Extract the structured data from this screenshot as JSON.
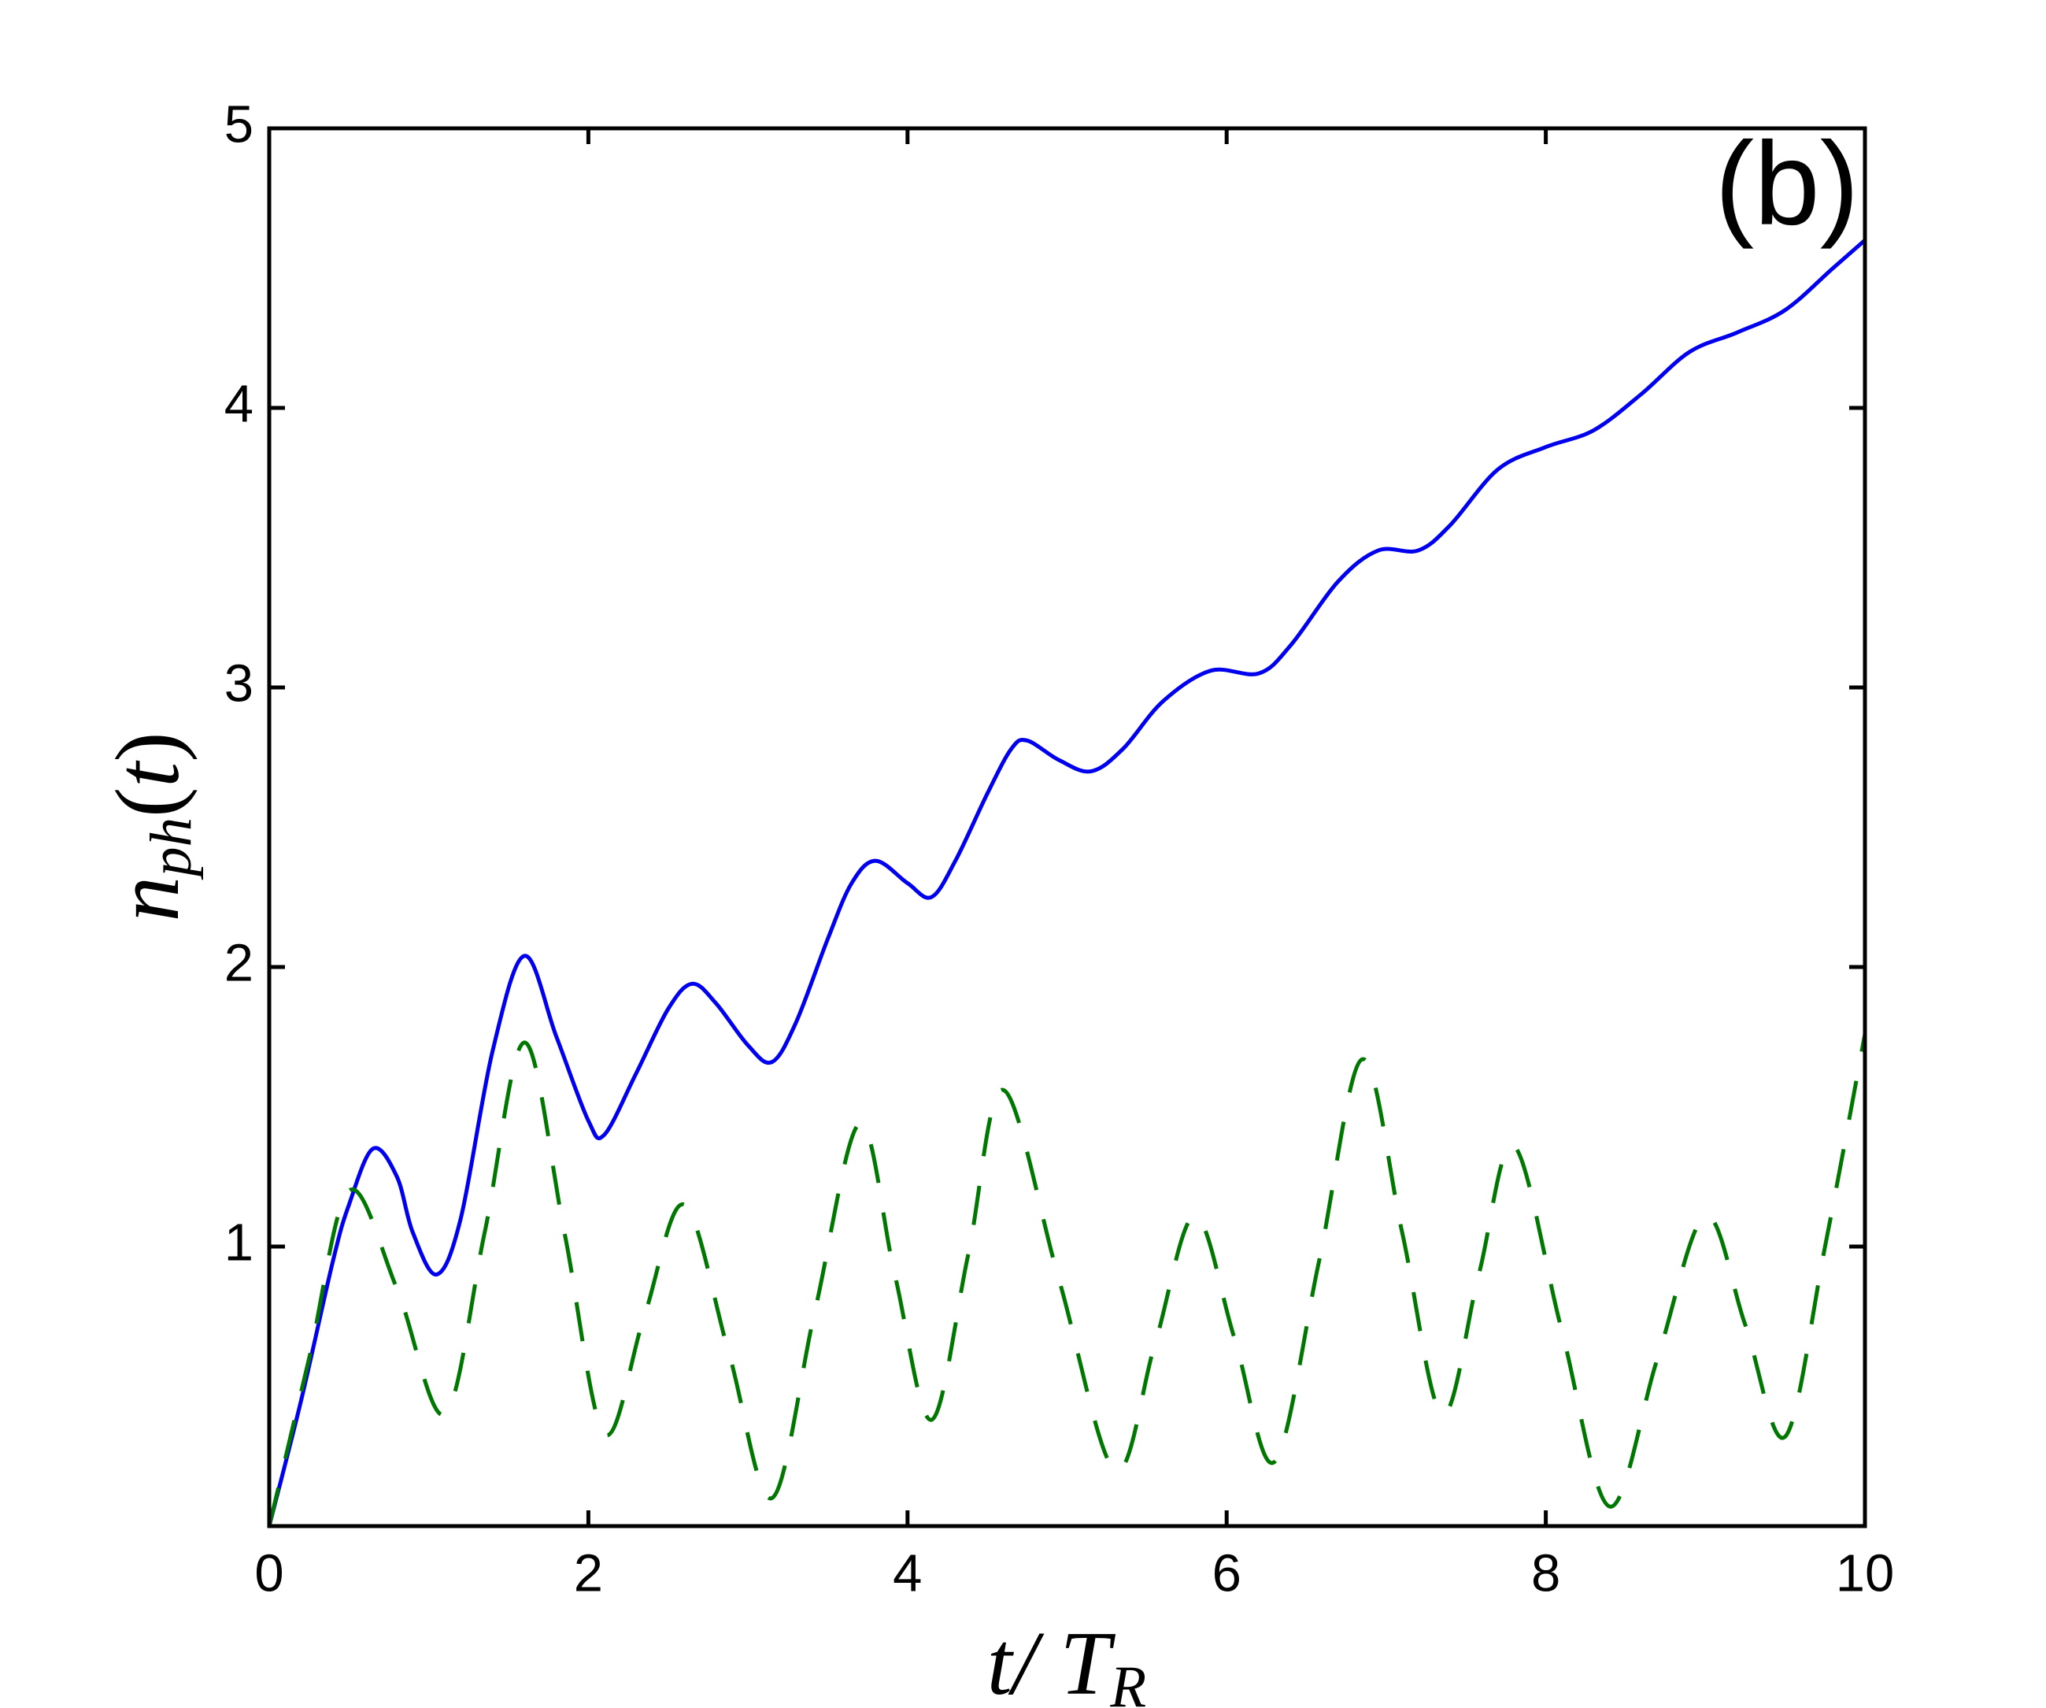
{
  "chart_data": {
    "type": "line",
    "annotation": "(b)",
    "xlabel": [
      "t",
      "/ ",
      "T",
      "R"
    ],
    "ylabel": [
      "n",
      "ph",
      "(",
      "t",
      ")"
    ],
    "xlim": [
      0,
      10
    ],
    "xticks": [
      0,
      2,
      4,
      6,
      8,
      10
    ],
    "ylim": [
      0,
      5
    ],
    "yticks": [
      1,
      2,
      3,
      4,
      5
    ],
    "grid": false,
    "series": [
      {
        "color": "#0000ee",
        "style": "solid",
        "x": [
          0,
          0.2,
          0.4,
          0.5,
          0.65,
          0.8,
          0.9,
          1.05,
          1.2,
          1.4,
          1.6,
          1.8,
          2.0,
          2.1,
          2.3,
          2.5,
          2.65,
          2.8,
          3.0,
          3.15,
          3.3,
          3.5,
          3.65,
          3.8,
          4.0,
          4.15,
          4.3,
          4.5,
          4.65,
          4.75,
          4.95,
          5.15,
          5.35,
          5.6,
          5.9,
          6.2,
          6.4,
          6.7,
          6.95,
          7.2,
          7.4,
          7.7,
          8.0,
          8.3,
          8.6,
          8.9,
          9.2,
          9.5,
          9.8,
          10
        ],
        "values": [
          0,
          0.45,
          0.95,
          1.15,
          1.35,
          1.25,
          1.05,
          0.9,
          1.1,
          1.7,
          2.04,
          1.75,
          1.45,
          1.4,
          1.62,
          1.85,
          1.94,
          1.87,
          1.72,
          1.66,
          1.8,
          2.1,
          2.3,
          2.38,
          2.3,
          2.25,
          2.38,
          2.62,
          2.78,
          2.81,
          2.74,
          2.7,
          2.78,
          2.95,
          3.06,
          3.05,
          3.15,
          3.38,
          3.49,
          3.49,
          3.58,
          3.78,
          3.86,
          3.92,
          4.05,
          4.2,
          4.27,
          4.35,
          4.5,
          4.6
        ]
      },
      {
        "color": "#007700",
        "style": "dashed",
        "x": [
          0,
          0.25,
          0.5,
          0.8,
          1.1,
          1.35,
          1.6,
          1.85,
          2.1,
          2.35,
          2.6,
          2.88,
          3.15,
          3.42,
          3.7,
          3.92,
          4.15,
          4.38,
          4.6,
          4.95,
          5.3,
          5.55,
          5.8,
          6.05,
          6.3,
          6.58,
          6.85,
          7.1,
          7.35,
          7.58,
          7.8,
          8.1,
          8.4,
          8.7,
          9.0,
          9.25,
          9.5,
          9.75,
          10
        ],
        "values": [
          0,
          0.6,
          1.2,
          0.85,
          0.4,
          1.05,
          1.73,
          1.05,
          0.33,
          0.75,
          1.15,
          0.62,
          0.1,
          0.77,
          1.44,
          0.9,
          0.38,
          0.97,
          1.56,
          0.88,
          0.2,
          0.65,
          1.11,
          0.67,
          0.23,
          0.95,
          1.67,
          1.05,
          0.4,
          0.9,
          1.36,
          0.7,
          0.07,
          0.6,
          1.11,
          0.72,
          0.32,
          1.0,
          1.76
        ]
      }
    ]
  }
}
